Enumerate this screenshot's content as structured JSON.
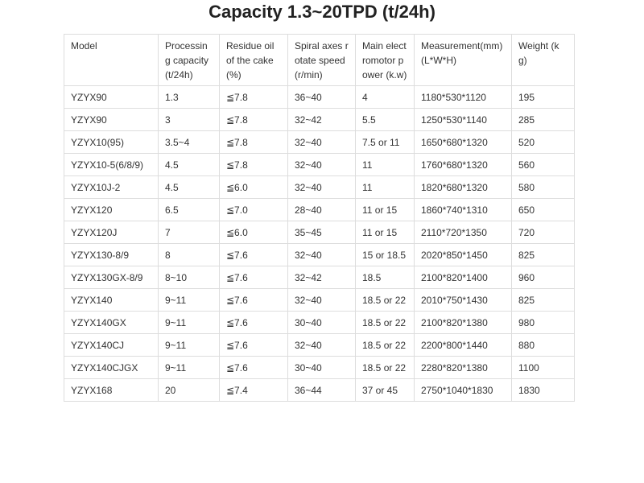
{
  "title": "Capacity 1.3~20TPD (t/24h)",
  "table": {
    "header": [
      "Model",
      "Processing capacity (t/24h)",
      "Residue oil of the cake (%)",
      "Spiral axes rotate speed (r/min)",
      "Main electromotor power (k.w)",
      "Measurement(mm) (L*W*H)",
      "Weight (kg)"
    ],
    "rows": [
      [
        "YZYX90",
        "1.3",
        "≦7.8",
        "36~40",
        "4",
        "1180*530*1120",
        "195"
      ],
      [
        "YZYX90",
        "3",
        "≦7.8",
        "32~42",
        "5.5",
        "1250*530*1140",
        "285"
      ],
      [
        "YZYX10(95)",
        "3.5~4",
        "≦7.8",
        "32~40",
        "7.5 or 11",
        "1650*680*1320",
        "520"
      ],
      [
        "YZYX10-5(6/8/9)",
        "4.5",
        "≦7.8",
        "32~40",
        "11",
        "1760*680*1320",
        "560"
      ],
      [
        "YZYX10J-2",
        "4.5",
        "≦6.0",
        "32~40",
        "11",
        "1820*680*1320",
        "580"
      ],
      [
        "YZYX120",
        "6.5",
        "≦7.0",
        "28~40",
        "11 or 15",
        "1860*740*1310",
        "650"
      ],
      [
        "YZYX120J",
        "7",
        "≦6.0",
        "35~45",
        "11 or 15",
        "2110*720*1350",
        "720"
      ],
      [
        "YZYX130-8/9",
        "8",
        "≦7.6",
        "32~40",
        "15 or 18.5",
        "2020*850*1450",
        "825"
      ],
      [
        "YZYX130GX-8/9",
        "8~10",
        "≦7.6",
        "32~42",
        "18.5",
        "2100*820*1400",
        "960"
      ],
      [
        "YZYX140",
        "9~11",
        "≦7.6",
        "32~40",
        "18.5 or 22",
        "2010*750*1430",
        "825"
      ],
      [
        "YZYX140GX",
        "9~11",
        "≦7.6",
        "30~40",
        "18.5 or 22",
        "2100*820*1380",
        "980"
      ],
      [
        "YZYX140CJ",
        "9~11",
        "≦7.6",
        "32~40",
        "18.5 or 22",
        "2200*800*1440",
        "880"
      ],
      [
        "YZYX140CJGX",
        "9~11",
        "≦7.6",
        "30~40",
        "18.5 or 22",
        "2280*820*1380",
        "1100"
      ],
      [
        "YZYX168",
        "20",
        "≦7.4",
        "36~44",
        "37 or 45",
        "2750*1040*1830",
        "1830"
      ]
    ]
  }
}
